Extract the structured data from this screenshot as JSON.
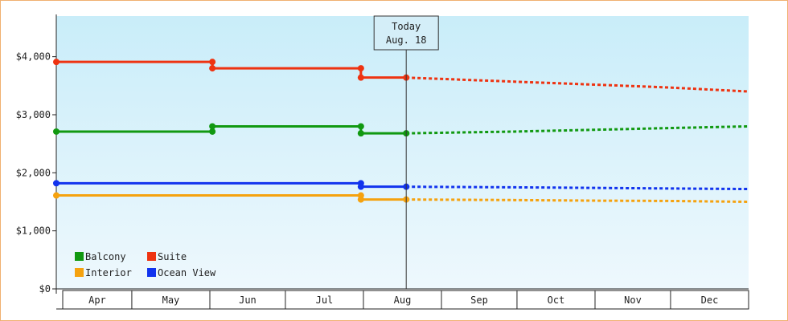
{
  "chart_data": {
    "type": "line",
    "title": "",
    "xlabel": "",
    "ylabel": "",
    "ylim": [
      0,
      4700
    ],
    "yticks": [
      0,
      1000,
      2000,
      3000,
      4000
    ],
    "ytick_labels": [
      "$0",
      "$1,000",
      "$2,000",
      "$3,000",
      "$4,000"
    ],
    "x_axis_start": "2024-04-01",
    "x_axis_end": "2025-01-01",
    "month_labels": [
      "Apr",
      "May",
      "Jun",
      "Jul",
      "Aug",
      "Sep",
      "Oct",
      "Nov",
      "Dec"
    ],
    "today": {
      "date": "2024-08-18",
      "label_line1": "Today",
      "label_line2": "Aug. 18"
    },
    "grid": false,
    "legend_position": "bottom-left",
    "colors": {
      "Balcony": "#119911",
      "Suite": "#ee3311",
      "Interior": "#f5a20f",
      "Ocean View": "#1133ee",
      "frame": "#f0b070"
    },
    "legend": [
      "Balcony",
      "Suite",
      "Interior",
      "Ocean View"
    ],
    "series": [
      {
        "name": "Suite",
        "points": [
          {
            "x": "2024-04-01",
            "y": 3910
          },
          {
            "x": "2024-06-02",
            "y": 3910
          },
          {
            "x": "2024-06-02",
            "y": 3800
          },
          {
            "x": "2024-07-31",
            "y": 3800
          },
          {
            "x": "2024-07-31",
            "y": 3640
          },
          {
            "x": "2024-08-18",
            "y": 3640
          }
        ],
        "forecast": [
          {
            "x": "2024-08-18",
            "y": 3640
          },
          {
            "x": "2024-09-30",
            "y": 3570
          },
          {
            "x": "2024-10-31",
            "y": 3520
          },
          {
            "x": "2024-11-30",
            "y": 3470
          },
          {
            "x": "2025-01-01",
            "y": 3400
          }
        ]
      },
      {
        "name": "Balcony",
        "points": [
          {
            "x": "2024-04-01",
            "y": 2710
          },
          {
            "x": "2024-06-02",
            "y": 2710
          },
          {
            "x": "2024-06-02",
            "y": 2800
          },
          {
            "x": "2024-07-31",
            "y": 2800
          },
          {
            "x": "2024-07-31",
            "y": 2680
          },
          {
            "x": "2024-08-18",
            "y": 2680
          }
        ],
        "forecast": [
          {
            "x": "2024-08-18",
            "y": 2680
          },
          {
            "x": "2024-09-30",
            "y": 2710
          },
          {
            "x": "2024-10-31",
            "y": 2740
          },
          {
            "x": "2024-11-30",
            "y": 2770
          },
          {
            "x": "2025-01-01",
            "y": 2800
          }
        ]
      },
      {
        "name": "Ocean View",
        "points": [
          {
            "x": "2024-04-01",
            "y": 1820
          },
          {
            "x": "2024-07-31",
            "y": 1820
          },
          {
            "x": "2024-07-31",
            "y": 1760
          },
          {
            "x": "2024-08-18",
            "y": 1760
          }
        ],
        "forecast": [
          {
            "x": "2024-08-18",
            "y": 1760
          },
          {
            "x": "2024-09-30",
            "y": 1750
          },
          {
            "x": "2024-10-31",
            "y": 1740
          },
          {
            "x": "2024-11-30",
            "y": 1730
          },
          {
            "x": "2025-01-01",
            "y": 1720
          }
        ]
      },
      {
        "name": "Interior",
        "points": [
          {
            "x": "2024-04-01",
            "y": 1610
          },
          {
            "x": "2024-07-31",
            "y": 1610
          },
          {
            "x": "2024-07-31",
            "y": 1540
          },
          {
            "x": "2024-08-18",
            "y": 1540
          }
        ],
        "forecast": [
          {
            "x": "2024-08-18",
            "y": 1540
          },
          {
            "x": "2024-09-30",
            "y": 1530
          },
          {
            "x": "2024-10-31",
            "y": 1520
          },
          {
            "x": "2024-11-30",
            "y": 1515
          },
          {
            "x": "2025-01-01",
            "y": 1500
          }
        ]
      }
    ]
  }
}
